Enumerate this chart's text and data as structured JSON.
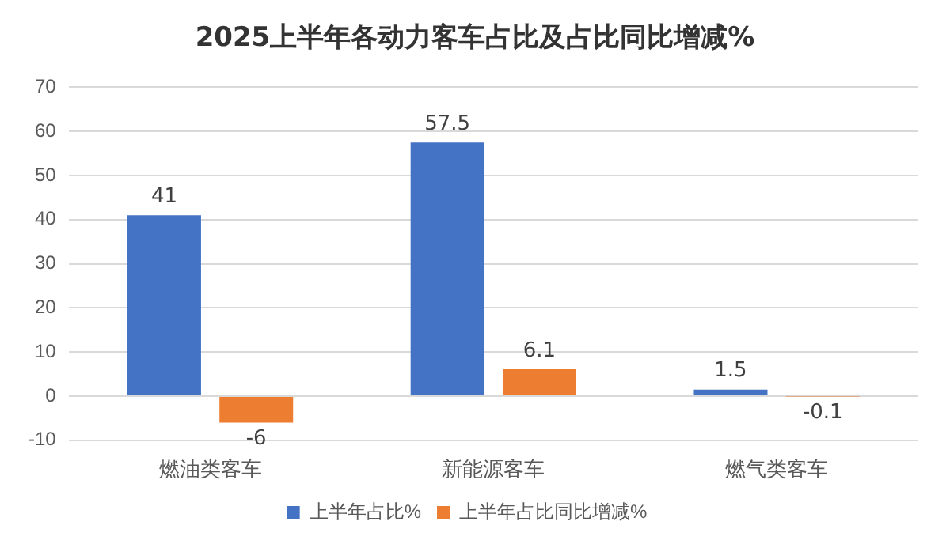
{
  "chart_data": {
    "type": "bar",
    "title": "2025上半年各动力客车占比及占比同比增减%",
    "categories": [
      "燃油类客车",
      "新能源客车",
      "燃气类客车"
    ],
    "series": [
      {
        "name": "上半年占比%",
        "color": "#4472c4",
        "values": [
          41,
          57.5,
          1.5
        ]
      },
      {
        "name": "上半年占比同比增减%",
        "color": "#ed7d31",
        "values": [
          -6,
          6.1,
          -0.1
        ]
      }
    ],
    "ylim": [
      -10,
      70
    ],
    "yticks": [
      -10,
      0,
      10,
      20,
      30,
      40,
      50,
      60,
      70
    ],
    "grid": "y",
    "legend": "bottom",
    "data_labels": true
  }
}
